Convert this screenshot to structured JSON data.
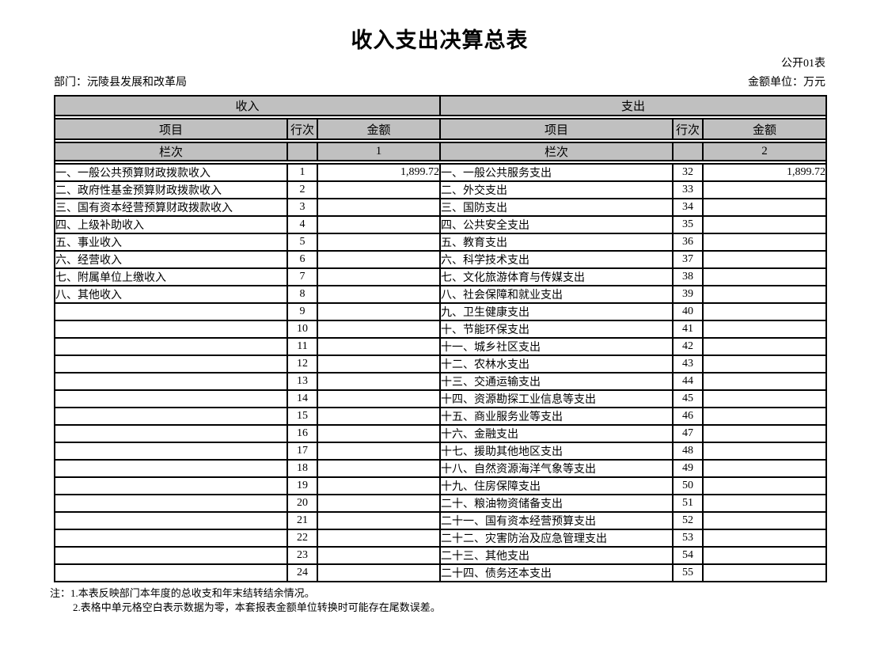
{
  "page": {
    "title": "收入支出决算总表",
    "table_code": "公开01表",
    "department_label": "部门：沅陵县发展和改革局",
    "unit_label": "金额单位：万元"
  },
  "table": {
    "income_section_header": "收入",
    "expense_section_header": "支出",
    "col_item": "项目",
    "col_line": "行次",
    "col_amount": "金额",
    "col_index_label": "栏次",
    "income_col_index": "1",
    "expense_col_index": "2",
    "rows": [
      {
        "income_item": "一、一般公共预算财政拨款收入",
        "income_line": "1",
        "income_amount": "1,899.72",
        "expense_item": "一、一般公共服务支出",
        "expense_line": "32",
        "expense_amount": "1,899.72"
      },
      {
        "income_item": "二、政府性基金预算财政拨款收入",
        "income_line": "2",
        "income_amount": "",
        "expense_item": "二、外交支出",
        "expense_line": "33",
        "expense_amount": ""
      },
      {
        "income_item": "三、国有资本经营预算财政拨款收入",
        "income_line": "3",
        "income_amount": "",
        "expense_item": "三、国防支出",
        "expense_line": "34",
        "expense_amount": ""
      },
      {
        "income_item": "四、上级补助收入",
        "income_line": "4",
        "income_amount": "",
        "expense_item": "四、公共安全支出",
        "expense_line": "35",
        "expense_amount": ""
      },
      {
        "income_item": "五、事业收入",
        "income_line": "5",
        "income_amount": "",
        "expense_item": "五、教育支出",
        "expense_line": "36",
        "expense_amount": ""
      },
      {
        "income_item": "六、经营收入",
        "income_line": "6",
        "income_amount": "",
        "expense_item": "六、科学技术支出",
        "expense_line": "37",
        "expense_amount": ""
      },
      {
        "income_item": "七、附属单位上缴收入",
        "income_line": "7",
        "income_amount": "",
        "expense_item": "七、文化旅游体育与传媒支出",
        "expense_line": "38",
        "expense_amount": ""
      },
      {
        "income_item": "八、其他收入",
        "income_line": "8",
        "income_amount": "",
        "expense_item": "八、社会保障和就业支出",
        "expense_line": "39",
        "expense_amount": ""
      },
      {
        "income_item": "",
        "income_line": "9",
        "income_amount": "",
        "expense_item": "九、卫生健康支出",
        "expense_line": "40",
        "expense_amount": ""
      },
      {
        "income_item": "",
        "income_line": "10",
        "income_amount": "",
        "expense_item": "十、节能环保支出",
        "expense_line": "41",
        "expense_amount": ""
      },
      {
        "income_item": "",
        "income_line": "11",
        "income_amount": "",
        "expense_item": "十一、城乡社区支出",
        "expense_line": "42",
        "expense_amount": ""
      },
      {
        "income_item": "",
        "income_line": "12",
        "income_amount": "",
        "expense_item": "十二、农林水支出",
        "expense_line": "43",
        "expense_amount": ""
      },
      {
        "income_item": "",
        "income_line": "13",
        "income_amount": "",
        "expense_item": "十三、交通运输支出",
        "expense_line": "44",
        "expense_amount": ""
      },
      {
        "income_item": "",
        "income_line": "14",
        "income_amount": "",
        "expense_item": "十四、资源勘探工业信息等支出",
        "expense_line": "45",
        "expense_amount": ""
      },
      {
        "income_item": "",
        "income_line": "15",
        "income_amount": "",
        "expense_item": "十五、商业服务业等支出",
        "expense_line": "46",
        "expense_amount": ""
      },
      {
        "income_item": "",
        "income_line": "16",
        "income_amount": "",
        "expense_item": "十六、金融支出",
        "expense_line": "47",
        "expense_amount": ""
      },
      {
        "income_item": "",
        "income_line": "17",
        "income_amount": "",
        "expense_item": "十七、援助其他地区支出",
        "expense_line": "48",
        "expense_amount": ""
      },
      {
        "income_item": "",
        "income_line": "18",
        "income_amount": "",
        "expense_item": "十八、自然资源海洋气象等支出",
        "expense_line": "49",
        "expense_amount": ""
      },
      {
        "income_item": "",
        "income_line": "19",
        "income_amount": "",
        "expense_item": "十九、住房保障支出",
        "expense_line": "50",
        "expense_amount": ""
      },
      {
        "income_item": "",
        "income_line": "20",
        "income_amount": "",
        "expense_item": "二十、粮油物资储备支出",
        "expense_line": "51",
        "expense_amount": ""
      },
      {
        "income_item": "",
        "income_line": "21",
        "income_amount": "",
        "expense_item": "二十一、国有资本经营预算支出",
        "expense_line": "52",
        "expense_amount": ""
      },
      {
        "income_item": "",
        "income_line": "22",
        "income_amount": "",
        "expense_item": "二十二、灾害防治及应急管理支出",
        "expense_line": "53",
        "expense_amount": ""
      },
      {
        "income_item": "",
        "income_line": "23",
        "income_amount": "",
        "expense_item": "二十三、其他支出",
        "expense_line": "54",
        "expense_amount": ""
      },
      {
        "income_item": "",
        "income_line": "24",
        "income_amount": "",
        "expense_item": "二十四、债务还本支出",
        "expense_line": "55",
        "expense_amount": ""
      }
    ]
  },
  "notes": {
    "note1": "注：1.本表反映部门本年度的总收支和年末结转结余情况。",
    "note2": "2.表格中单元格空白表示数据为零，本套报表金额单位转换时可能存在尾数误差。"
  }
}
